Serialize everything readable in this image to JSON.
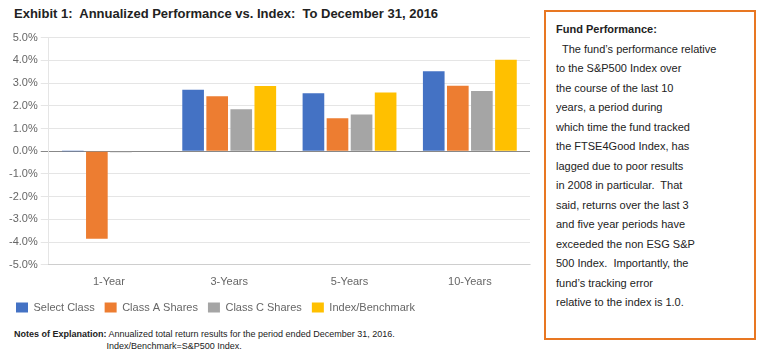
{
  "chart_data": {
    "type": "bar",
    "title": "Exhibit 1:  Annualized Performance vs. Index:  To December 31, 2016",
    "categories": [
      "1-Year",
      "3-Years",
      "5-Years",
      "10-Years"
    ],
    "series": [
      {
        "name": "Select Class",
        "color": "#4472C4",
        "values": [
          0.001,
          2.7,
          2.55,
          3.52
        ]
      },
      {
        "name": "Class A Shares",
        "color": "#ED7D31",
        "values": [
          -3.85,
          2.42,
          1.45,
          2.88
        ]
      },
      {
        "name": "Class C Shares",
        "color": "#A5A5A5",
        "values": [
          -0.05,
          1.85,
          1.62,
          2.65
        ]
      },
      {
        "name": "Index/Benchmark",
        "color": "#FFC000",
        "values": [
          0.0,
          2.87,
          2.58,
          4.02
        ]
      }
    ],
    "ylim": [
      -5,
      5
    ],
    "yticks": [
      {
        "value": -5,
        "label": "-5.0%"
      },
      {
        "value": -4,
        "label": "-4.0%"
      },
      {
        "value": -3,
        "label": "-3.0%"
      },
      {
        "value": -2,
        "label": "-2.0%"
      },
      {
        "value": -1,
        "label": "-1.0%"
      },
      {
        "value": 0,
        "label": "0.0%"
      },
      {
        "value": 1,
        "label": "1.0%"
      },
      {
        "value": 2,
        "label": "2.0%"
      },
      {
        "value": 3,
        "label": "3.0%"
      },
      {
        "value": 4,
        "label": "4.0%"
      },
      {
        "value": 5,
        "label": "5.0%"
      }
    ],
    "grid": true,
    "legend": "bottom",
    "notes": {
      "title": "Notes of Explanation:",
      "text": " Annualized total return results for the period ended December 31, 2016.\nIndex/Benchmark=S&P500 Index."
    },
    "annotation": {
      "title": "Fund Performance:",
      "color": "#E87722",
      "lines": [
        "  The fund’s performance relative",
        "to the S&P500 Index over",
        "the course of the last 10",
        "years, a period during",
        "which time the fund tracked",
        "the FTSE4Good Index, has",
        "lagged due to poor results",
        "in 2008 in particular.  That",
        "said, returns over the last 3",
        "and five year periods have",
        "exceeded the non ESG S&P",
        "500 Index.  Importantly, the",
        "fund’s tracking error",
        "relative to the index is 1.0."
      ]
    }
  }
}
